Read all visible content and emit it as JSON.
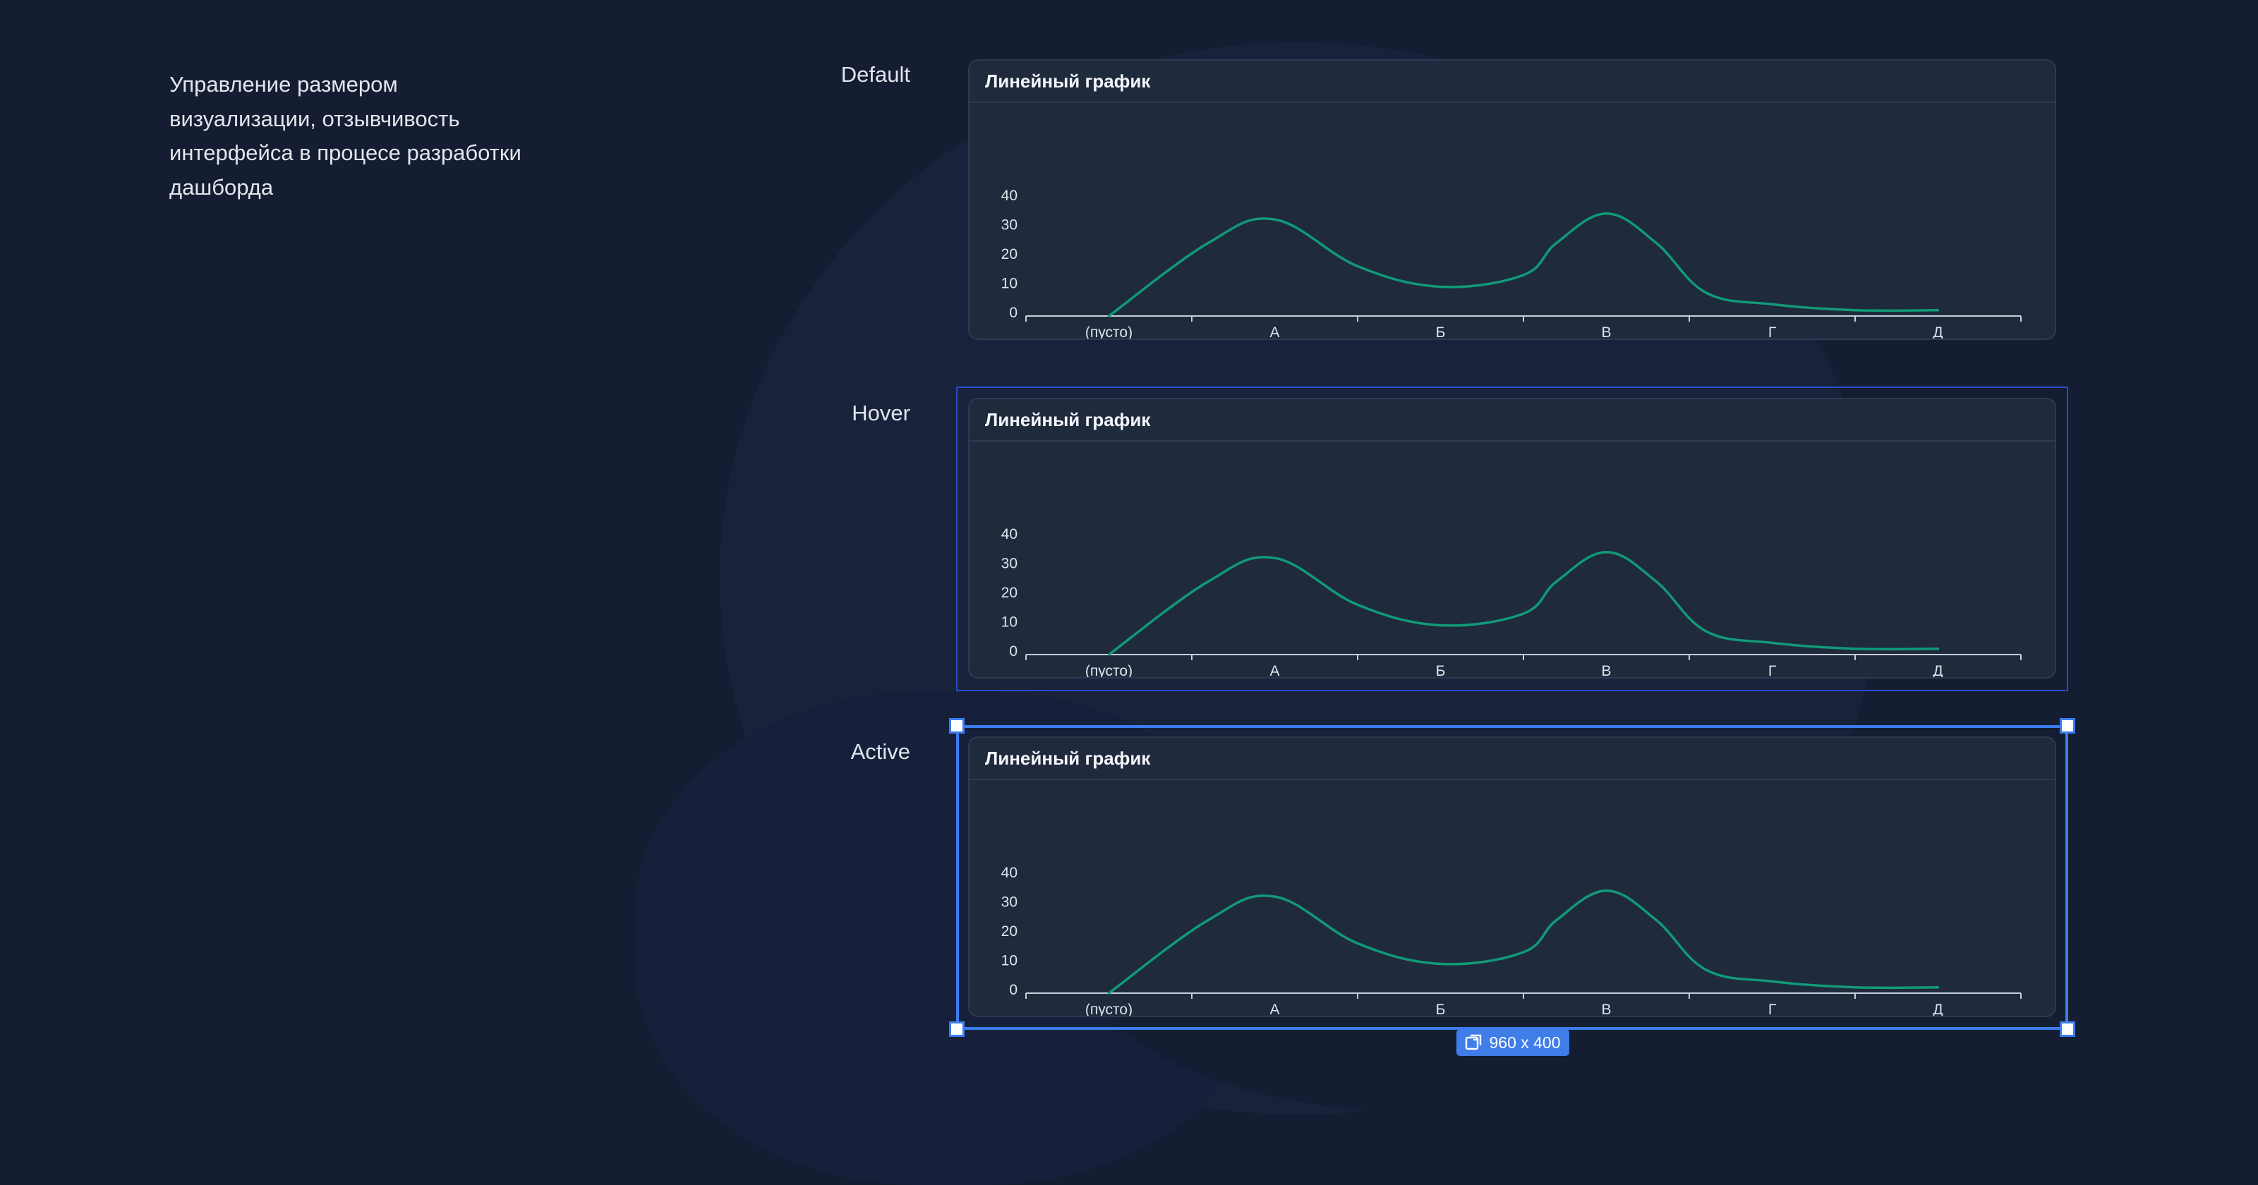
{
  "description": {
    "text": "Управление размером визуализации, отзывчивость интерфейса в процесе разработки дашборда"
  },
  "states": [
    {
      "key": "default",
      "label": "Default",
      "panel_title": "Линейный график"
    },
    {
      "key": "hover",
      "label": "Hover",
      "panel_title": "Линейный график"
    },
    {
      "key": "active",
      "label": "Active",
      "panel_title": "Линейный график"
    }
  ],
  "resize_badge": {
    "icon": "resize-icon",
    "text": "960 x 400"
  },
  "colors": {
    "line": "#109a78",
    "selection": "#3b7cf0",
    "hover_outline": "#2a4bc9"
  },
  "chart_data": {
    "type": "line",
    "title": "Линейный график",
    "categories": [
      "(пусто)",
      "А",
      "Б",
      "В",
      "Г",
      "Д"
    ],
    "y_ticks": [
      0,
      10,
      20,
      30,
      40
    ],
    "ylim": [
      0,
      40
    ],
    "smooth": true,
    "x": [
      0,
      0.6,
      1,
      1.5,
      2,
      2.5,
      2.7,
      3.0,
      3.3,
      3.6,
      4,
      4.5,
      5
    ],
    "y": [
      0,
      25,
      33,
      17,
      10,
      14,
      25,
      35,
      25,
      8,
      4,
      2,
      2
    ]
  }
}
